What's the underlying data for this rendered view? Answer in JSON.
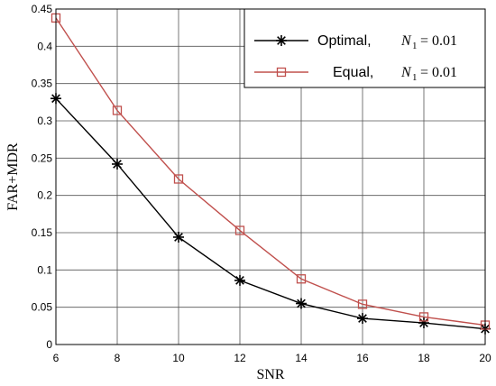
{
  "chart_data": {
    "type": "line",
    "xlabel": "SNR",
    "ylabel": "FAR+MDR",
    "xlim": [
      6,
      20
    ],
    "ylim": [
      0,
      0.45
    ],
    "xticks": [
      6,
      8,
      10,
      12,
      14,
      16,
      18,
      20
    ],
    "yticks": [
      0,
      0.05,
      0.1,
      0.15,
      0.2,
      0.25,
      0.3,
      0.35,
      0.4,
      0.45
    ],
    "xtick_labels": [
      "6",
      "8",
      "10",
      "12",
      "14",
      "16",
      "18",
      "20"
    ],
    "ytick_labels": [
      "0",
      "0.05",
      "0.1",
      "0.15",
      "0.2",
      "0.25",
      "0.3",
      "0.35",
      "0.4",
      "0.45"
    ],
    "grid": true,
    "legend_position": "top-right",
    "x": [
      6,
      8,
      10,
      12,
      14,
      16,
      18,
      20
    ],
    "series": [
      {
        "name": "Optimal,",
        "legend_math": "N",
        "legend_sub": "1",
        "legend_rhs": "= 0.01",
        "color": "#000000",
        "marker": "asterisk",
        "values": [
          0.33,
          0.242,
          0.144,
          0.086,
          0.055,
          0.035,
          0.029,
          0.021
        ]
      },
      {
        "name": "Equal,",
        "legend_math": "N",
        "legend_sub": "1",
        "legend_rhs": "= 0.01",
        "color": "#c0504d",
        "marker": "square",
        "values": [
          0.438,
          0.314,
          0.222,
          0.153,
          0.088,
          0.054,
          0.037,
          0.026
        ]
      }
    ]
  }
}
